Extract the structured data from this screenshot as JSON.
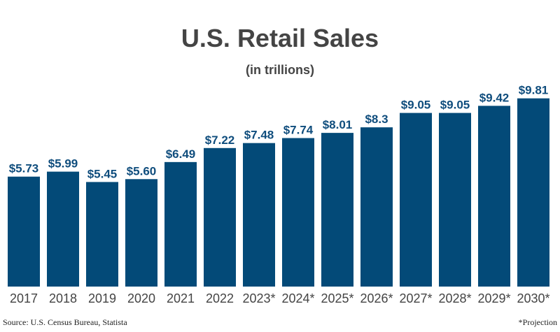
{
  "chart_data": {
    "type": "bar",
    "title": "U.S. Retail Sales",
    "subtitle": "(in trillions)",
    "categories": [
      "2017",
      "2018",
      "2019",
      "2020",
      "2021",
      "2022",
      "2023*",
      "2024*",
      "2025*",
      "2026*",
      "2027*",
      "2028*",
      "2029*",
      "2030*"
    ],
    "values": [
      5.73,
      5.99,
      5.45,
      5.6,
      6.49,
      7.22,
      7.48,
      7.74,
      8.01,
      8.3,
      9.05,
      9.05,
      9.42,
      9.81
    ],
    "value_labels": [
      "$5.73",
      "$5.99",
      "$5.45",
      "$5.60",
      "$6.49",
      "$7.22",
      "$7.48",
      "$7.74",
      "$8.01",
      "$8.3",
      "$9.05",
      "$9.05",
      "$9.42",
      "$9.81"
    ],
    "xlabel": "",
    "ylabel": "",
    "ylim": [
      0,
      10
    ],
    "grid": false,
    "bar_color": "#034a78",
    "label_color": "#0f4d7d",
    "source": "Source: U.S. Census Bureau, Statista",
    "footnote": "*Projection"
  }
}
